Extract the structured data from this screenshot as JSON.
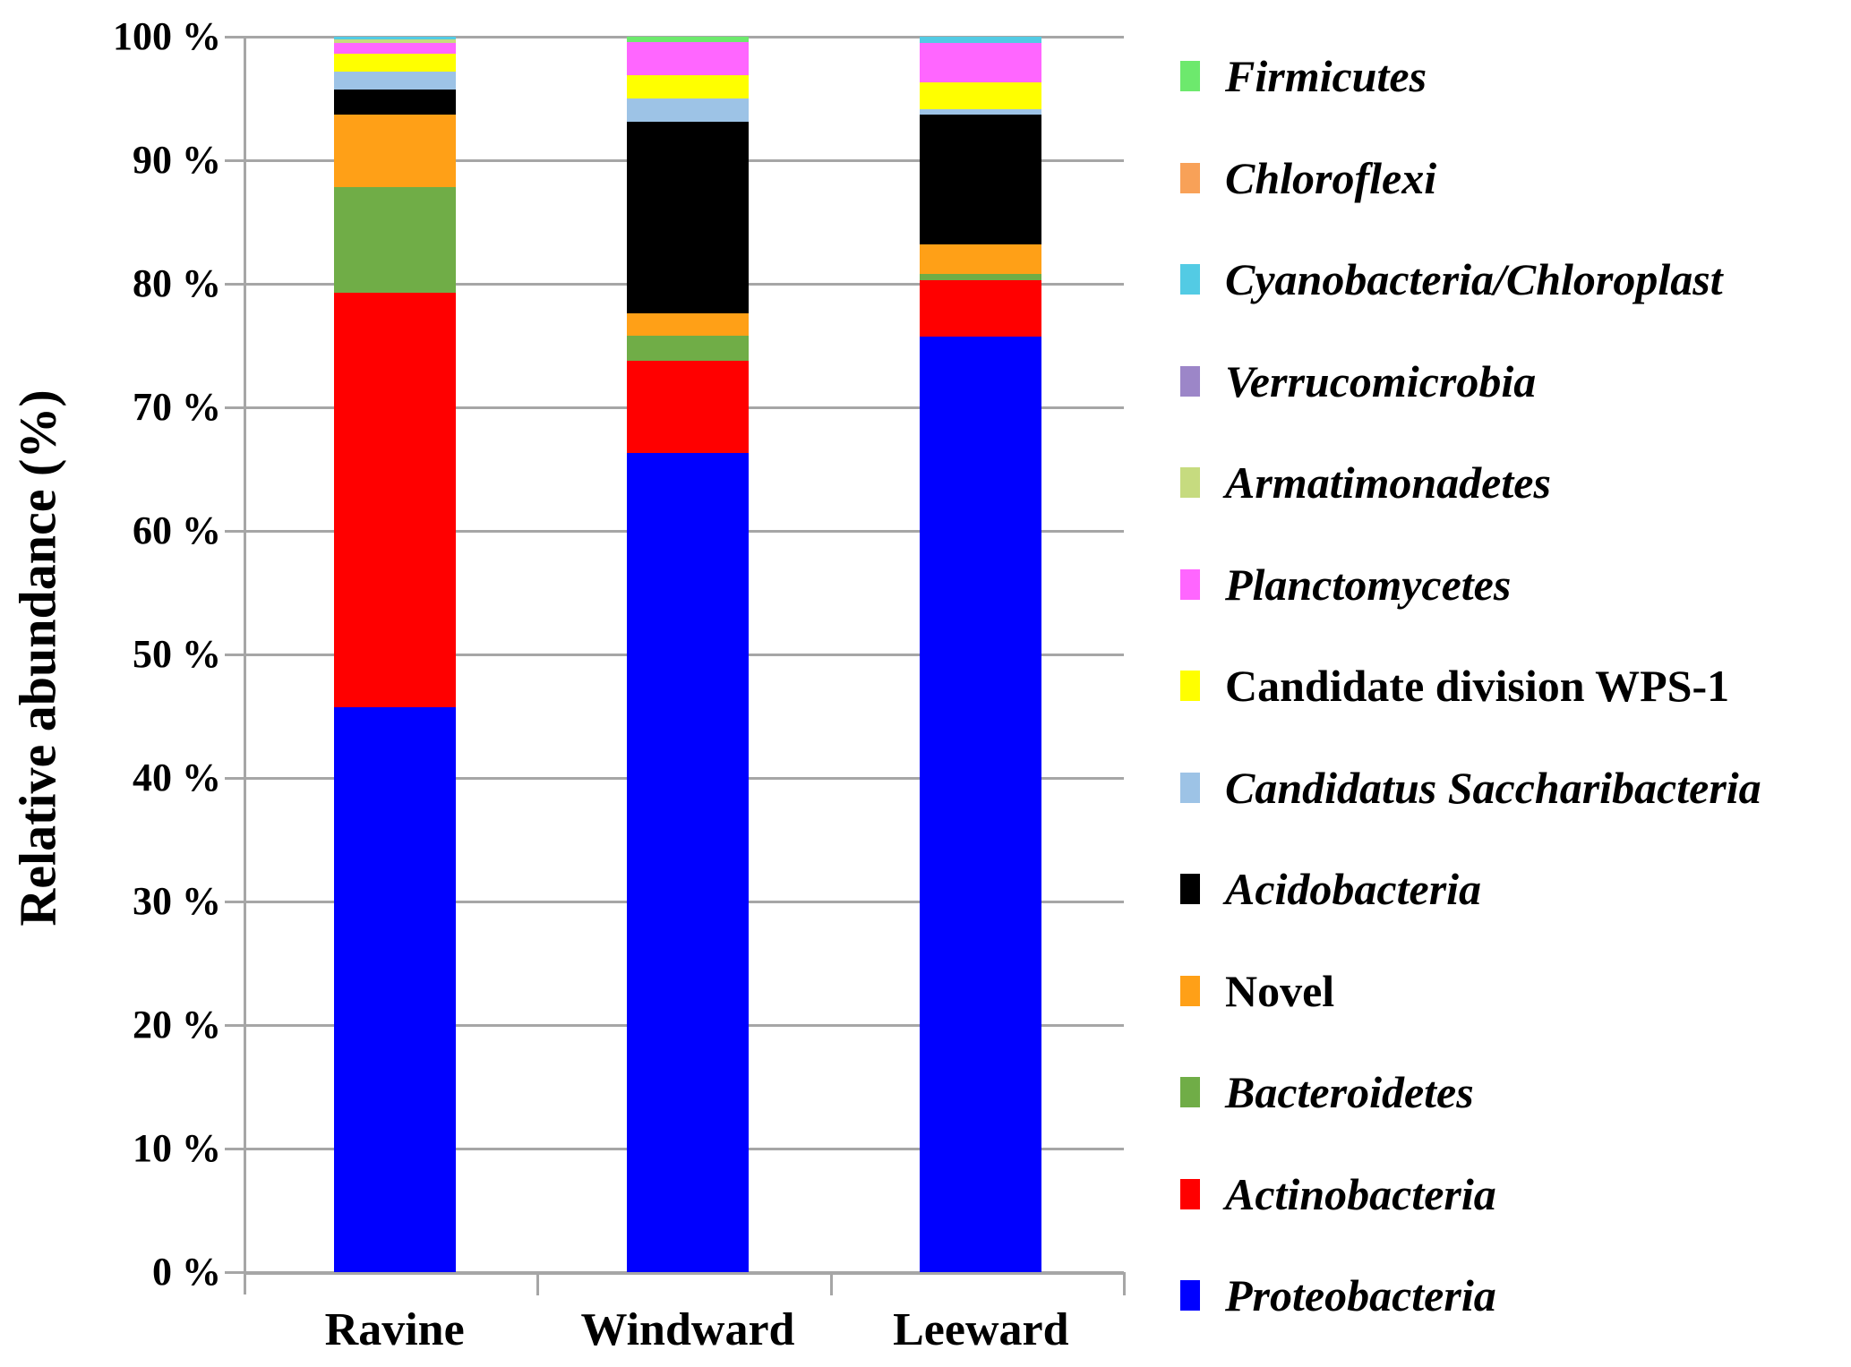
{
  "chart_data": {
    "type": "stacked-bar",
    "title": "",
    "xlabel": "",
    "ylabel": "Relative abundance (%)",
    "ylim": [
      0,
      100
    ],
    "grid": true,
    "legend_position": "right",
    "gridline_color": "#a6a6a6",
    "background_color": "#ffffff",
    "y_tick_labels": [
      "100 %",
      "90 %",
      "80 %",
      "70 %",
      "60 %",
      "50 %",
      "40 %",
      "30 %",
      "20 %",
      "10 %",
      "0 %"
    ],
    "categories": [
      "Ravine",
      "Windward",
      "Leeward"
    ],
    "series": [
      {
        "name": "Firmicutes",
        "italic": true,
        "color": "#6de96d",
        "values": [
          0.0,
          0.4,
          0.0
        ]
      },
      {
        "name": "Chloroflexi",
        "italic": true,
        "color": "#f8a158",
        "values": [
          0.0,
          0.0,
          0.0
        ]
      },
      {
        "name": "Cyanobacteria/Chloroplast",
        "italic": true,
        "color": "#53cbe4",
        "values": [
          0.2,
          0.0,
          0.5
        ]
      },
      {
        "name": "Verrucomicrobia",
        "italic": true,
        "color": "#9c86c8",
        "values": [
          0.0,
          0.0,
          0.0
        ]
      },
      {
        "name": "Armatimonadetes",
        "italic": true,
        "color": "#c6db7f",
        "values": [
          0.3,
          0.0,
          0.0
        ]
      },
      {
        "name": "Planctomycetes",
        "italic": true,
        "color": "#ff66ff",
        "values": [
          0.9,
          2.7,
          3.2
        ]
      },
      {
        "name": "Candidate division WPS-1",
        "italic": false,
        "color": "#ffff00",
        "values": [
          1.4,
          1.9,
          2.2
        ]
      },
      {
        "name": "Candidatus Saccharibacteria",
        "italic": true,
        "color": "#9dc3e6",
        "values": [
          1.5,
          1.9,
          0.4
        ]
      },
      {
        "name": "Acidobacteria",
        "italic": true,
        "color": "#000000",
        "values": [
          2.0,
          15.5,
          10.5
        ]
      },
      {
        "name": "Novel",
        "italic": false,
        "color": "#ffa017",
        "values": [
          5.9,
          1.8,
          2.4
        ]
      },
      {
        "name": "Bacteroidetes",
        "italic": true,
        "color": "#70ad47",
        "values": [
          8.5,
          2.0,
          0.5
        ]
      },
      {
        "name": "Actinobacteria",
        "italic": true,
        "color": "#ff0000",
        "values": [
          33.6,
          7.5,
          4.6
        ]
      },
      {
        "name": "Proteobacteria",
        "italic": true,
        "color": "#0000ff",
        "values": [
          45.7,
          66.3,
          75.7
        ]
      }
    ]
  }
}
